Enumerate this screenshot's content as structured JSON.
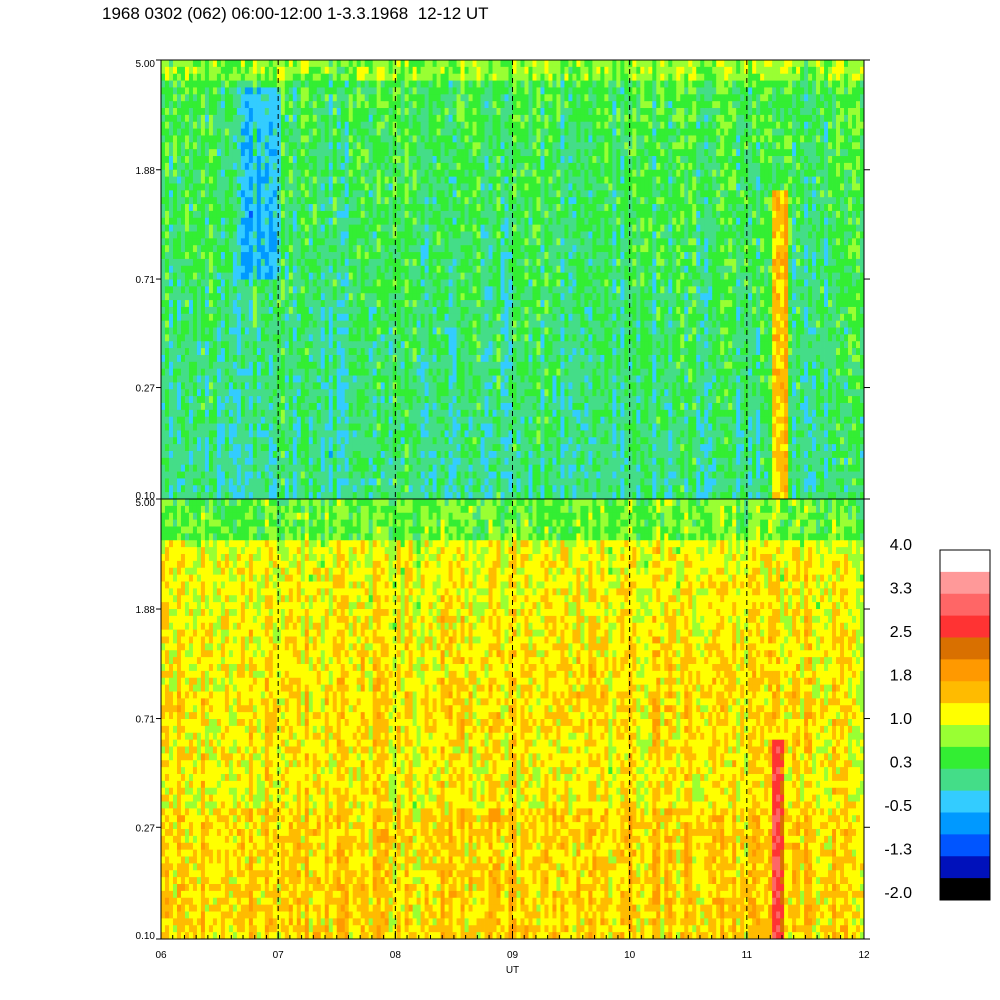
{
  "title": "1968 0302 (062) 06:00-12:00 1-3.3.1968  12-12 UT",
  "chart_data": {
    "type": "heatmap",
    "title": "1968 0302 (062) 06:00-12:00 1-3.3.1968  12-12 UT",
    "xlabel": "UT",
    "x_tick_labels": [
      "06",
      "07",
      "08",
      "09",
      "10",
      "11",
      "12"
    ],
    "x_range": [
      6,
      12
    ],
    "panels": [
      {
        "name": "upper",
        "y_tick_labels": [
          "5.00",
          "1.88",
          "0.71",
          "0.27",
          "0.10"
        ],
        "y_range": [
          0.1,
          5.0
        ],
        "y_scale": "log",
        "dominant_levels": [
          "green",
          "cyan",
          "yellow-green"
        ]
      },
      {
        "name": "lower",
        "y_tick_labels": [
          "5.00",
          "1.88",
          "0.71",
          "0.27",
          "0.10"
        ],
        "y_range": [
          0.1,
          5.0
        ],
        "y_scale": "log",
        "dominant_levels": [
          "orange",
          "yellow",
          "green"
        ]
      }
    ],
    "dashed_hour_lines": [
      "07",
      "08",
      "09",
      "10",
      "11"
    ],
    "colorbar": {
      "labels": [
        "4.0",
        "3.3",
        "2.5",
        "1.8",
        "1.0",
        "0.3",
        "-0.5",
        "-1.3",
        "-2.0"
      ],
      "range": [
        -2.0,
        4.0
      ],
      "colors": [
        "#ffffff",
        "#ff9999",
        "#ff6666",
        "#ff3333",
        "#d97000",
        "#ff9900",
        "#ffbb00",
        "#ffff00",
        "#99ff33",
        "#33ee33",
        "#44dd88",
        "#33ccff",
        "#0099ff",
        "#0055ff",
        "#0011bb",
        "#000000"
      ]
    }
  }
}
